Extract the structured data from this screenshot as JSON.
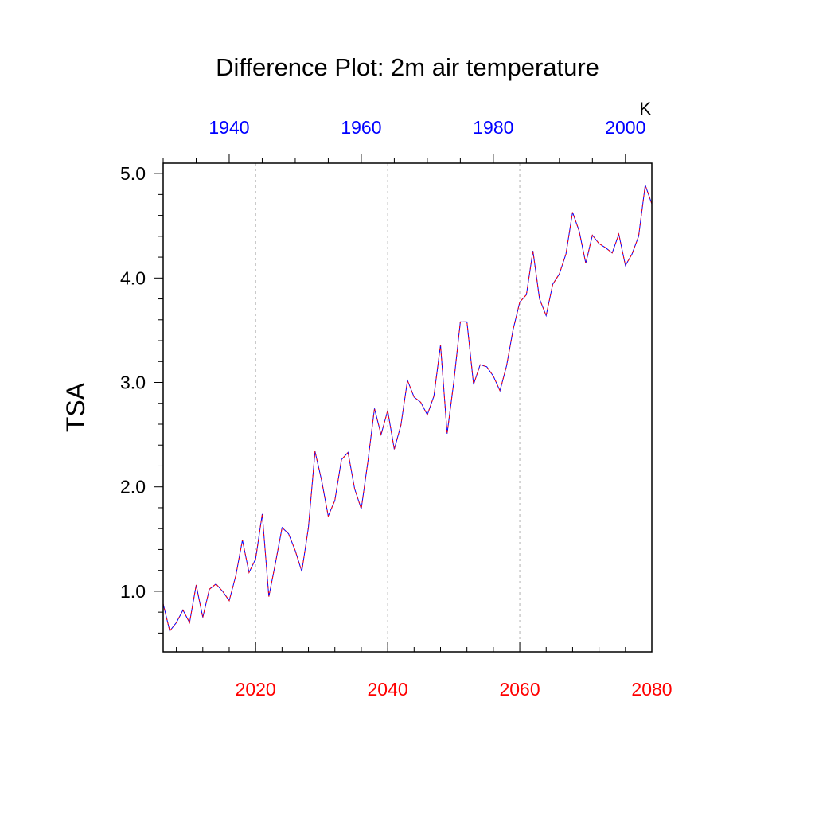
{
  "chart_data": {
    "type": "line",
    "title": "Difference Plot: 2m air temperature",
    "units": "K",
    "ylabel": "TSA",
    "ylim": [
      0.42,
      5.1
    ],
    "yticks": [
      "1.0",
      "2.0",
      "3.0",
      "4.0",
      "5.0"
    ],
    "yticks_values": [
      1.0,
      2.0,
      3.0,
      4.0,
      5.0
    ],
    "grid": "vertical dotted at labeled bottom ticks",
    "x_axis_bottom": {
      "range": [
        2006,
        2080
      ],
      "ticks": [
        "2020",
        "2040",
        "2060",
        "2080"
      ],
      "tick_values": [
        2020,
        2040,
        2060,
        2080
      ],
      "color": "#ff0000"
    },
    "x_axis_top": {
      "range": [
        1930,
        2004
      ],
      "ticks": [
        "1940",
        "1960",
        "1980",
        "2000"
      ],
      "tick_values": [
        1940,
        1960,
        1980,
        2000
      ],
      "color": "#0000ff"
    },
    "series": [
      {
        "color_primary": "#0000ff",
        "color_secondary": "#ff0000",
        "x_start": 2006,
        "x_step": 1,
        "values": [
          0.88,
          0.62,
          0.7,
          0.82,
          0.7,
          1.06,
          0.75,
          1.02,
          1.07,
          1.0,
          0.91,
          1.15,
          1.49,
          1.18,
          1.31,
          1.74,
          0.95,
          1.27,
          1.61,
          1.55,
          1.39,
          1.19,
          1.61,
          2.34,
          2.06,
          1.72,
          1.87,
          2.26,
          2.33,
          1.98,
          1.79,
          2.24,
          2.75,
          2.5,
          2.73,
          2.36,
          2.59,
          3.02,
          2.86,
          2.81,
          2.69,
          2.87,
          3.36,
          2.51,
          3.0,
          3.58,
          3.58,
          2.98,
          3.17,
          3.15,
          3.06,
          2.92,
          3.16,
          3.51,
          3.77,
          3.84,
          4.26,
          3.8,
          3.64,
          3.94,
          4.04,
          4.23,
          4.63,
          4.45,
          4.14,
          4.41,
          4.33,
          4.29,
          4.24,
          4.42,
          4.12,
          4.23,
          4.4,
          4.89,
          4.71
        ]
      }
    ]
  }
}
